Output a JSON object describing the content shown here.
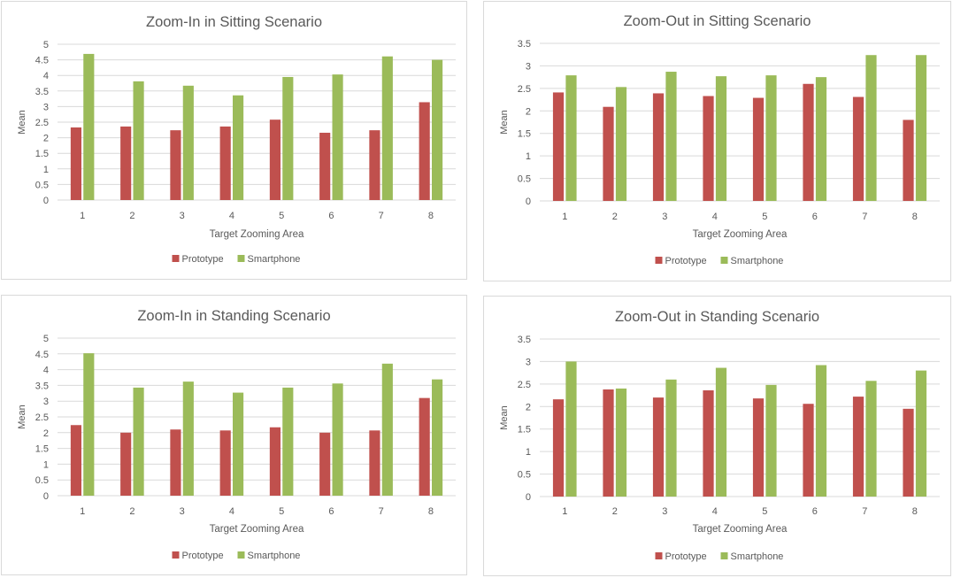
{
  "legend": {
    "prototype": "Prototype",
    "smartphone": "Smartphone"
  },
  "colors": {
    "prototype": "#c0504d",
    "smartphone": "#9bbb59",
    "grid": "#d9d9d9",
    "text": "#595959"
  },
  "chart_data": [
    {
      "type": "bar",
      "title": "Zoom-In in Sitting Scenario",
      "xlabel": "Target Zooming Area",
      "ylabel": "Mean",
      "ylim": [
        0,
        5
      ],
      "yticks": [
        "0",
        "0.5",
        "1",
        "1.5",
        "2",
        "2.5",
        "3",
        "3.5",
        "4",
        "4.5",
        "5"
      ],
      "categories": [
        "1",
        "2",
        "3",
        "4",
        "5",
        "6",
        "7",
        "8"
      ],
      "series": [
        {
          "name": "Prototype",
          "values": [
            2.33,
            2.36,
            2.24,
            2.36,
            2.58,
            2.16,
            2.24,
            3.14
          ]
        },
        {
          "name": "Smartphone",
          "values": [
            4.69,
            3.81,
            3.67,
            3.36,
            3.95,
            4.03,
            4.61,
            4.5
          ]
        }
      ],
      "legend_position": "bottom",
      "grid": true
    },
    {
      "type": "bar",
      "title": "Zoom-Out in Sitting Scenario",
      "xlabel": "Target Zooming Area",
      "ylabel": "Mean",
      "ylim": [
        0,
        3.5
      ],
      "yticks": [
        "0",
        "0.5",
        "1",
        "1.5",
        "2",
        "2.5",
        "3",
        "3.5"
      ],
      "categories": [
        "1",
        "2",
        "3",
        "4",
        "5",
        "6",
        "7",
        "8"
      ],
      "series": [
        {
          "name": "Prototype",
          "values": [
            2.41,
            2.09,
            2.39,
            2.33,
            2.29,
            2.6,
            2.31,
            1.8
          ]
        },
        {
          "name": "Smartphone",
          "values": [
            2.79,
            2.53,
            2.87,
            2.77,
            2.79,
            2.75,
            3.24,
            3.24
          ]
        }
      ],
      "legend_position": "bottom",
      "grid": true
    },
    {
      "type": "bar",
      "title": "Zoom-In in Standing Scenario",
      "xlabel": "Target Zooming Area",
      "ylabel": "Mean",
      "ylim": [
        0,
        5
      ],
      "yticks": [
        "0",
        "0.5",
        "1",
        "1.5",
        "2",
        "2.5",
        "3",
        "3.5",
        "4",
        "4.5",
        "5"
      ],
      "categories": [
        "1",
        "2",
        "3",
        "4",
        "5",
        "6",
        "7",
        "8"
      ],
      "series": [
        {
          "name": "Prototype",
          "values": [
            2.24,
            2.0,
            2.1,
            2.07,
            2.17,
            2.0,
            2.07,
            3.1
          ]
        },
        {
          "name": "Smartphone",
          "values": [
            4.52,
            3.43,
            3.62,
            3.27,
            3.43,
            3.56,
            4.19,
            3.69
          ]
        }
      ],
      "legend_position": "bottom",
      "grid": true
    },
    {
      "type": "bar",
      "title": "Zoom-Out in Standing Scenario",
      "xlabel": "Target Zooming Area",
      "ylabel": "Mean",
      "ylim": [
        0,
        3.5
      ],
      "yticks": [
        "0",
        "0.5",
        "1",
        "1.5",
        "2",
        "2.5",
        "3",
        "3.5"
      ],
      "categories": [
        "1",
        "2",
        "3",
        "4",
        "5",
        "6",
        "7",
        "8"
      ],
      "series": [
        {
          "name": "Prototype",
          "values": [
            2.16,
            2.38,
            2.2,
            2.36,
            2.18,
            2.06,
            2.22,
            1.95
          ]
        },
        {
          "name": "Smartphone",
          "values": [
            3.0,
            2.4,
            2.6,
            2.86,
            2.48,
            2.92,
            2.57,
            2.8
          ]
        }
      ],
      "legend_position": "bottom",
      "grid": true
    }
  ]
}
